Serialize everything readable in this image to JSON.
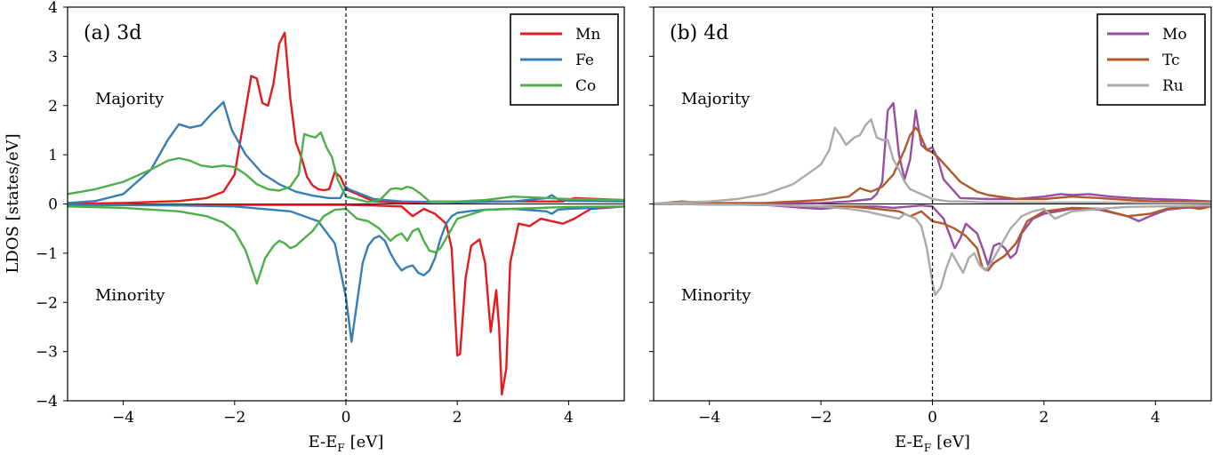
{
  "figure": {
    "ylabel": "LDOS [states/eV]"
  },
  "chart_data": [
    {
      "type": "line",
      "panel_title": "(a) 3d",
      "xlabel": "E-E",
      "xlabel_sub": "F",
      "xlabel_unit": "[eV]",
      "ylabel": "LDOS [states/eV]",
      "xlim": [
        -5,
        5
      ],
      "ylim": [
        -4,
        4
      ],
      "xticks": [
        -4,
        -2,
        0,
        2,
        4
      ],
      "yticks": [
        -4,
        -3,
        -2,
        -1,
        0,
        1,
        2,
        3,
        4
      ],
      "grid": false,
      "legend_position": "top-right",
      "fermi_line_x": 0,
      "annotations": [
        "Majority",
        "Minority"
      ],
      "series": [
        {
          "name": "Mn",
          "color": "#e41a1c",
          "spin": "majority",
          "x": [
            -5,
            -4,
            -3,
            -2.5,
            -2.2,
            -2,
            -1.85,
            -1.7,
            -1.6,
            -1.5,
            -1.4,
            -1.3,
            -1.2,
            -1.1,
            -1.0,
            -0.9,
            -0.8,
            -0.7,
            -0.6,
            -0.5,
            -0.4,
            -0.3,
            -0.2,
            -0.1,
            0,
            0.5,
            1,
            2,
            3,
            3.9,
            4.1,
            5
          ],
          "y": [
            0,
            0.02,
            0.06,
            0.12,
            0.25,
            0.6,
            1.6,
            2.6,
            2.55,
            2.05,
            2.0,
            2.45,
            3.25,
            3.48,
            2.15,
            1.25,
            0.95,
            0.55,
            0.38,
            0.3,
            0.28,
            0.3,
            0.65,
            0.55,
            0.3,
            0.05,
            0.02,
            0.05,
            0.05,
            0.05,
            0.12,
            0.08
          ]
        },
        {
          "name": "Mn",
          "color": "#e41a1c",
          "spin": "minority",
          "x": [
            -5,
            -2,
            -1,
            0,
            0.5,
            1.0,
            1.2,
            1.4,
            1.6,
            1.8,
            1.9,
            2.0,
            2.05,
            2.15,
            2.25,
            2.4,
            2.5,
            2.6,
            2.7,
            2.75,
            2.8,
            2.88,
            2.95,
            3.1,
            3.3,
            3.5,
            3.7,
            3.9,
            4.1,
            4.4,
            5
          ],
          "y": [
            -0.02,
            -0.02,
            -0.02,
            -0.02,
            -0.03,
            -0.05,
            -0.25,
            -0.1,
            -0.2,
            -0.4,
            -0.9,
            -3.08,
            -3.05,
            -1.5,
            -0.85,
            -0.72,
            -1.2,
            -2.6,
            -1.75,
            -2.5,
            -3.87,
            -3.35,
            -1.2,
            -0.4,
            -0.45,
            -0.3,
            -0.35,
            -0.4,
            -0.3,
            -0.1,
            -0.05
          ]
        },
        {
          "name": "Fe",
          "color": "#377eb8",
          "spin": "majority",
          "x": [
            -5,
            -4.5,
            -4,
            -3.5,
            -3.2,
            -3.0,
            -2.8,
            -2.6,
            -2.4,
            -2.2,
            -2.05,
            -1.8,
            -1.5,
            -1.2,
            -0.9,
            -0.6,
            -0.3,
            -0.1,
            0,
            0.05,
            0.5,
            1,
            2,
            3,
            3.6,
            3.7,
            3.8,
            4,
            5
          ],
          "y": [
            0.02,
            0.06,
            0.2,
            0.7,
            1.3,
            1.62,
            1.55,
            1.6,
            1.85,
            2.07,
            1.5,
            1.0,
            0.62,
            0.4,
            0.25,
            0.17,
            0.12,
            0.12,
            0.35,
            0.3,
            0.1,
            0.05,
            0.03,
            0.05,
            0.12,
            0.18,
            0.1,
            0.06,
            0.05
          ]
        },
        {
          "name": "Fe",
          "color": "#377eb8",
          "spin": "minority",
          "x": [
            -5,
            -3,
            -2,
            -1,
            -0.5,
            -0.2,
            0,
            0.1,
            0.2,
            0.3,
            0.4,
            0.5,
            0.6,
            0.7,
            0.8,
            0.9,
            1.0,
            1.1,
            1.2,
            1.3,
            1.4,
            1.5,
            1.6,
            1.7,
            1.8,
            1.9,
            2.0,
            2.2,
            2.5,
            3,
            3.6,
            3.7,
            3.8,
            4.0,
            5
          ],
          "y": [
            -0.02,
            -0.03,
            -0.05,
            -0.15,
            -0.35,
            -0.8,
            -1.9,
            -2.8,
            -2.0,
            -1.2,
            -0.85,
            -0.7,
            -0.65,
            -0.75,
            -1.0,
            -1.2,
            -1.35,
            -1.28,
            -1.25,
            -1.4,
            -1.45,
            -1.35,
            -1.1,
            -0.7,
            -0.4,
            -0.25,
            -0.18,
            -0.15,
            -0.12,
            -0.1,
            -0.15,
            -0.2,
            -0.12,
            -0.1,
            -0.05
          ]
        },
        {
          "name": "Co",
          "color": "#4daf4a",
          "spin": "majority",
          "x": [
            -5,
            -4.5,
            -4,
            -3.5,
            -3.2,
            -3.0,
            -2.8,
            -2.6,
            -2.4,
            -2.2,
            -2.0,
            -1.8,
            -1.6,
            -1.4,
            -1.2,
            -1.0,
            -0.85,
            -0.75,
            -0.65,
            -0.55,
            -0.45,
            -0.35,
            -0.25,
            -0.15,
            0,
            0.4,
            0.6,
            0.8,
            0.9,
            1.0,
            1.1,
            1.2,
            1.35,
            1.5,
            2,
            2.5,
            3,
            4,
            5
          ],
          "y": [
            0.2,
            0.3,
            0.45,
            0.7,
            0.88,
            0.93,
            0.88,
            0.78,
            0.75,
            0.78,
            0.75,
            0.6,
            0.4,
            0.3,
            0.27,
            0.35,
            0.6,
            1.42,
            1.38,
            1.35,
            1.45,
            1.15,
            0.95,
            0.5,
            0.15,
            0.04,
            0.07,
            0.3,
            0.32,
            0.3,
            0.35,
            0.32,
            0.2,
            0.05,
            0.05,
            0.08,
            0.15,
            0.1,
            0.08
          ]
        },
        {
          "name": "Co",
          "color": "#4daf4a",
          "spin": "minority",
          "x": [
            -5,
            -4,
            -3,
            -2.5,
            -2.2,
            -2.0,
            -1.8,
            -1.6,
            -1.45,
            -1.3,
            -1.2,
            -1.1,
            -1.0,
            -0.9,
            -0.8,
            -0.6,
            -0.4,
            -0.2,
            0,
            0.2,
            0.4,
            0.6,
            0.8,
            0.9,
            1.0,
            1.1,
            1.2,
            1.3,
            1.4,
            1.5,
            1.6,
            1.7,
            2.0,
            2.5,
            3,
            3.5,
            4,
            5
          ],
          "y": [
            -0.05,
            -0.08,
            -0.15,
            -0.25,
            -0.38,
            -0.55,
            -0.95,
            -1.62,
            -1.1,
            -0.85,
            -0.75,
            -0.8,
            -0.9,
            -0.85,
            -0.75,
            -0.55,
            -0.25,
            -0.12,
            -0.1,
            -0.3,
            -0.35,
            -0.5,
            -0.75,
            -0.65,
            -0.6,
            -0.75,
            -0.55,
            -0.5,
            -0.75,
            -0.95,
            -0.98,
            -0.9,
            -0.3,
            -0.12,
            -0.1,
            -0.08,
            -0.06,
            -0.05
          ]
        }
      ]
    },
    {
      "type": "line",
      "panel_title": "(b) 4d",
      "xlabel": "E-E",
      "xlabel_sub": "F",
      "xlabel_unit": "[eV]",
      "xlim": [
        -5,
        5
      ],
      "ylim": [
        -4,
        4
      ],
      "xticks": [
        -4,
        -2,
        0,
        2,
        4
      ],
      "yticks": [
        -4,
        -3,
        -2,
        -1,
        0,
        1,
        2,
        3,
        4
      ],
      "grid": false,
      "legend_position": "top-right",
      "fermi_line_x": 0,
      "annotations": [
        "Majority",
        "Minority"
      ],
      "series": [
        {
          "name": "Mo",
          "color": "#984ea3",
          "spin": "majority",
          "x": [
            -5,
            -4,
            -3,
            -2,
            -1.5,
            -1.1,
            -1.0,
            -0.9,
            -0.8,
            -0.7,
            -0.6,
            -0.5,
            -0.4,
            -0.3,
            -0.2,
            -0.1,
            0,
            0.1,
            0.2,
            0.5,
            1.0,
            1.5,
            2.0,
            2.3,
            2.5,
            2.8,
            3.2,
            3.6,
            4.0,
            4.5,
            5
          ],
          "y": [
            0,
            0.01,
            0.01,
            0.02,
            0.05,
            0.1,
            0.2,
            0.45,
            1.9,
            2.05,
            1.0,
            0.5,
            0.9,
            1.9,
            1.2,
            1.1,
            1.15,
            0.9,
            0.5,
            0.12,
            0.1,
            0.1,
            0.15,
            0.2,
            0.18,
            0.2,
            0.15,
            0.12,
            0.1,
            0.08,
            0.05
          ]
        },
        {
          "name": "Mo",
          "color": "#984ea3",
          "spin": "minority",
          "x": [
            -5,
            -3,
            -2.3,
            -2.0,
            -1.5,
            -1.0,
            -0.7,
            -0.4,
            -0.2,
            0,
            0.2,
            0.3,
            0.4,
            0.5,
            0.6,
            0.8,
            0.9,
            1.0,
            1.1,
            1.2,
            1.3,
            1.4,
            1.5,
            1.6,
            1.8,
            2.0,
            2.5,
            3,
            3.5,
            3.7,
            3.9,
            4.2,
            4.5,
            5
          ],
          "y": [
            0,
            -0.02,
            -0.08,
            -0.1,
            -0.05,
            -0.05,
            -0.08,
            -0.05,
            -0.03,
            -0.05,
            -0.3,
            -0.6,
            -0.9,
            -0.7,
            -0.4,
            -0.6,
            -0.9,
            -1.25,
            -0.85,
            -0.8,
            -0.9,
            -1.1,
            -1.0,
            -0.6,
            -0.3,
            -0.2,
            -0.1,
            -0.12,
            -0.25,
            -0.35,
            -0.25,
            -0.12,
            -0.08,
            -0.05
          ]
        },
        {
          "name": "Tc",
          "color": "#b15928",
          "spin": "majority",
          "x": [
            -5,
            -4.5,
            -4,
            -3,
            -2,
            -1.5,
            -1.3,
            -1.2,
            -1.1,
            -0.9,
            -0.7,
            -0.5,
            -0.4,
            -0.3,
            -0.25,
            -0.2,
            -0.1,
            0,
            0.1,
            0.3,
            0.5,
            0.8,
            1.0,
            1.5,
            2.0,
            2.5,
            3.0,
            3.5,
            4,
            5
          ],
          "y": [
            0,
            0.05,
            0.02,
            0.02,
            0.08,
            0.15,
            0.32,
            0.28,
            0.25,
            0.35,
            0.6,
            1.1,
            1.4,
            1.55,
            1.48,
            1.35,
            1.1,
            1.05,
            0.95,
            0.7,
            0.45,
            0.25,
            0.18,
            0.1,
            0.1,
            0.15,
            0.12,
            0.08,
            0.05,
            0.05
          ]
        },
        {
          "name": "Tc",
          "color": "#b15928",
          "spin": "minority",
          "x": [
            -5,
            -3,
            -2,
            -1.5,
            -1.0,
            -0.6,
            -0.4,
            -0.3,
            -0.2,
            -0.1,
            0,
            0.2,
            0.4,
            0.6,
            0.8,
            0.9,
            1.0,
            1.1,
            1.3,
            1.5,
            1.7,
            2.0,
            2.5,
            3.0,
            3.5,
            3.9,
            4.2,
            4.5,
            4.8,
            5
          ],
          "y": [
            0,
            -0.02,
            -0.05,
            -0.05,
            -0.1,
            -0.15,
            -0.25,
            -0.2,
            -0.15,
            -0.25,
            -0.35,
            -0.4,
            -0.5,
            -0.65,
            -0.9,
            -1.3,
            -1.35,
            -1.2,
            -1.05,
            -0.8,
            -0.35,
            -0.15,
            -0.08,
            -0.1,
            -0.25,
            -0.2,
            -0.1,
            -0.05,
            -0.1,
            -0.05
          ]
        },
        {
          "name": "Ru",
          "color": "#aaaaaa",
          "spin": "majority",
          "x": [
            -5,
            -4,
            -3.5,
            -3.0,
            -2.5,
            -2.0,
            -1.85,
            -1.75,
            -1.65,
            -1.55,
            -1.4,
            -1.3,
            -1.2,
            -1.1,
            -1.0,
            -0.9,
            -0.8,
            -0.7,
            -0.6,
            -0.5,
            -0.4,
            -0.3,
            -0.2,
            0,
            0.3,
            0.5,
            1,
            2,
            3,
            4,
            5
          ],
          "y": [
            0.01,
            0.05,
            0.1,
            0.2,
            0.4,
            0.8,
            1.1,
            1.55,
            1.4,
            1.2,
            1.35,
            1.4,
            1.6,
            1.72,
            1.35,
            1.3,
            1.3,
            0.9,
            0.7,
            0.45,
            0.3,
            0.25,
            0.2,
            0.1,
            0.05,
            0.05,
            0.03,
            0.03,
            0.03,
            0.02,
            0.02
          ]
        },
        {
          "name": "Ru",
          "color": "#aaaaaa",
          "spin": "minority",
          "x": [
            -5,
            -3,
            -2,
            -1.5,
            -1.2,
            -1.0,
            -0.8,
            -0.6,
            -0.5,
            -0.3,
            -0.2,
            -0.1,
            0,
            0.05,
            0.15,
            0.25,
            0.35,
            0.45,
            0.55,
            0.65,
            0.75,
            0.85,
            0.95,
            1.05,
            1.2,
            1.4,
            1.6,
            1.8,
            2.0,
            2.2,
            2.5,
            3.0,
            3.5,
            4,
            5
          ],
          "y": [
            0,
            -0.02,
            -0.05,
            -0.1,
            -0.15,
            -0.2,
            -0.25,
            -0.3,
            -0.2,
            -0.3,
            -0.45,
            -0.9,
            -1.6,
            -1.85,
            -1.7,
            -1.3,
            -1.0,
            -1.2,
            -1.4,
            -1.1,
            -1.0,
            -1.25,
            -1.35,
            -1.2,
            -0.9,
            -0.5,
            -0.25,
            -0.15,
            -0.1,
            -0.3,
            -0.15,
            -0.1,
            -0.06,
            -0.05,
            -0.03
          ]
        }
      ]
    }
  ]
}
